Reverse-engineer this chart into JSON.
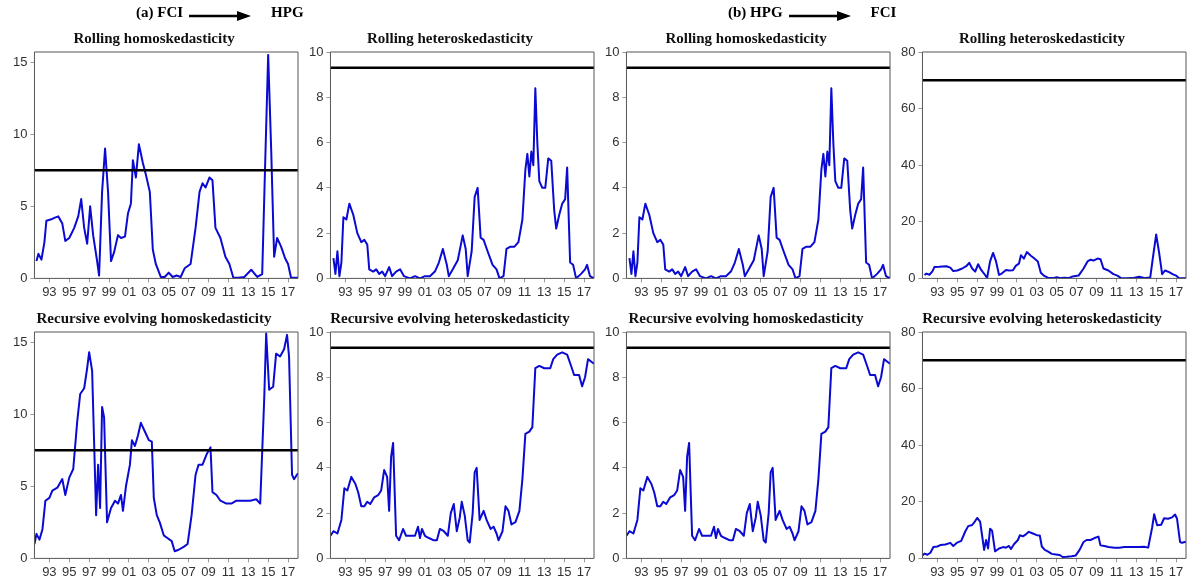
{
  "chart_data": [
    {
      "type": "line",
      "title": "Rolling homoskedasticity",
      "annotations": [
        "(a) FCI",
        "HPG"
      ],
      "xlim": [
        1991.5,
        2018
      ],
      "xticks": [
        {
          "value": 1993,
          "label": "93"
        },
        {
          "value": 1995,
          "label": "95"
        },
        {
          "value": 1997,
          "label": "97"
        },
        {
          "value": 1999,
          "label": "99"
        },
        {
          "value": 2001,
          "label": "01"
        },
        {
          "value": 2003,
          "label": "03"
        },
        {
          "value": 2005,
          "label": "05"
        },
        {
          "value": 2007,
          "label": "07"
        },
        {
          "value": 2009,
          "label": "09"
        },
        {
          "value": 2011,
          "label": "11"
        },
        {
          "value": 2013,
          "label": "13"
        },
        {
          "value": 2015,
          "label": "15"
        },
        {
          "value": 2017,
          "label": "17"
        }
      ],
      "ylim": [
        0,
        15.7
      ],
      "yticks": [
        0,
        5,
        10,
        15
      ],
      "ref_lines": [
        {
          "axis": "y",
          "value": 7.5,
          "color": "#000000"
        }
      ],
      "x": [
        1991.7,
        1991.9,
        1992.2,
        1992.5,
        1992.7,
        1993.2,
        1993.5,
        1993.9,
        1994.3,
        1994.6,
        1995.0,
        1995.5,
        1995.9,
        1996.2,
        1996.5,
        1996.8,
        1997.1,
        1997.4,
        1997.8,
        1998.0,
        1998.3,
        1998.6,
        1998.9,
        1999.2,
        1999.5,
        1999.9,
        2000.2,
        2000.6,
        2000.9,
        2001.2,
        2001.4,
        2001.7,
        2002.0,
        2002.4,
        2002.7,
        2003.1,
        2003.4,
        2003.7,
        2004.2,
        2004.6,
        2005.0,
        2005.4,
        2005.8,
        2006.2,
        2006.6,
        2007.2,
        2007.7,
        2008.1,
        2008.4,
        2008.7,
        2009.1,
        2009.4,
        2009.7,
        2010.2,
        2010.7,
        2011.1,
        2011.5,
        2012.0,
        2012.6,
        2013.3,
        2013.9,
        2014.4,
        2014.7,
        2015.0,
        2015.3,
        2015.6,
        2015.9,
        2016.3,
        2016.7,
        2017.0,
        2017.3,
        2018.0
      ],
      "series": [
        {
          "color": "#0a0ad2",
          "values": [
            1.2,
            1.7,
            1.3,
            2.5,
            4.0,
            4.1,
            4.2,
            4.3,
            3.8,
            2.6,
            2.8,
            3.5,
            4.3,
            5.5,
            3.5,
            2.4,
            5.0,
            3.0,
            1.2,
            0.2,
            6.0,
            9.0,
            6.0,
            1.2,
            1.8,
            3.0,
            2.8,
            2.9,
            4.5,
            5.2,
            8.2,
            7.0,
            9.3,
            8.0,
            7.2,
            6.0,
            2.0,
            1.0,
            0.1,
            0.1,
            0.4,
            0.1,
            0.2,
            0.1,
            0.7,
            1.0,
            3.5,
            6.0,
            6.6,
            6.3,
            7.0,
            6.8,
            3.5,
            2.8,
            1.5,
            1.0,
            0.05,
            0.05,
            0.1,
            0.6,
            0.1,
            0.3,
            8.0,
            15.5,
            9.0,
            1.5,
            2.8,
            2.2,
            1.4,
            1.0,
            0.05,
            0.05
          ]
        }
      ]
    },
    {
      "type": "line",
      "title": "Rolling heteroskedasticity",
      "xlim": [
        1991.5,
        2018
      ],
      "xticks": [
        {
          "value": 1993,
          "label": "93"
        },
        {
          "value": 1995,
          "label": "95"
        },
        {
          "value": 1997,
          "label": "97"
        },
        {
          "value": 1999,
          "label": "99"
        },
        {
          "value": 2001,
          "label": "01"
        },
        {
          "value": 2003,
          "label": "03"
        },
        {
          "value": 2005,
          "label": "05"
        },
        {
          "value": 2007,
          "label": "07"
        },
        {
          "value": 2009,
          "label": "09"
        },
        {
          "value": 2011,
          "label": "11"
        },
        {
          "value": 2013,
          "label": "13"
        },
        {
          "value": 2015,
          "label": "15"
        },
        {
          "value": 2017,
          "label": "17"
        }
      ],
      "ylim": [
        0,
        10
      ],
      "yticks": [
        0,
        2,
        4,
        6,
        8,
        10
      ],
      "ref_lines": [
        {
          "axis": "y",
          "value": 9.3,
          "color": "#000000"
        }
      ],
      "x": [
        1991.8,
        1992.0,
        1992.2,
        1992.4,
        1992.6,
        1992.8,
        1993.1,
        1993.4,
        1993.8,
        1994.2,
        1994.6,
        1994.9,
        1995.2,
        1995.4,
        1995.8,
        1996.1,
        1996.4,
        1996.7,
        1997.0,
        1997.4,
        1997.7,
        1998.1,
        1998.5,
        1998.9,
        1999.5,
        2000.0,
        2000.5,
        2001.0,
        2001.5,
        2002.0,
        2002.4,
        2002.8,
        2003.2,
        2003.4,
        2003.8,
        2004.3,
        2004.8,
        2005.1,
        2005.3,
        2005.7,
        2006.0,
        2006.3,
        2006.6,
        2006.9,
        2007.3,
        2007.8,
        2008.2,
        2008.5,
        2008.9,
        2009.2,
        2009.6,
        2010.0,
        2010.4,
        2010.8,
        2011.1,
        2011.3,
        2011.5,
        2011.7,
        2011.9,
        2012.1,
        2012.3,
        2012.5,
        2012.8,
        2013.1,
        2013.4,
        2013.7,
        2014.0,
        2014.2,
        2014.5,
        2014.8,
        2015.1,
        2015.3,
        2015.6,
        2015.9,
        2016.2,
        2016.7,
        2017.1,
        2017.3,
        2017.6,
        2018.0
      ],
      "series": [
        {
          "color": "#0a0ad2",
          "values": [
            0.9,
            0.2,
            1.2,
            0.1,
            0.7,
            2.7,
            2.6,
            3.3,
            2.8,
            2.0,
            1.6,
            1.7,
            1.5,
            0.4,
            0.3,
            0.4,
            0.2,
            0.3,
            0.1,
            0.5,
            0.1,
            0.3,
            0.4,
            0.1,
            0.0,
            0.1,
            0.0,
            0.1,
            0.1,
            0.3,
            0.7,
            1.3,
            0.6,
            0.1,
            0.4,
            0.8,
            1.9,
            1.3,
            0.1,
            1.2,
            3.6,
            4.0,
            1.8,
            1.7,
            1.2,
            0.6,
            0.4,
            0.0,
            0.1,
            1.3,
            1.4,
            1.4,
            1.6,
            2.6,
            4.8,
            5.5,
            4.5,
            5.6,
            5.0,
            8.4,
            6.0,
            4.3,
            4.0,
            4.0,
            5.3,
            5.2,
            3.0,
            2.2,
            2.8,
            3.3,
            3.5,
            4.9,
            0.7,
            0.6,
            0.0,
            0.2,
            0.4,
            0.6,
            0.1,
            0.0
          ]
        }
      ]
    },
    {
      "type": "line",
      "title": "Rolling homoskedasticity",
      "annotations": [
        "(b) HPG",
        "FCI"
      ],
      "xlim": [
        1991.5,
        2018
      ],
      "xticks": [
        {
          "value": 1993,
          "label": "93"
        },
        {
          "value": 1995,
          "label": "95"
        },
        {
          "value": 1997,
          "label": "97"
        },
        {
          "value": 1999,
          "label": "99"
        },
        {
          "value": 2001,
          "label": "01"
        },
        {
          "value": 2003,
          "label": "03"
        },
        {
          "value": 2005,
          "label": "05"
        },
        {
          "value": 2007,
          "label": "07"
        },
        {
          "value": 2009,
          "label": "09"
        },
        {
          "value": 2011,
          "label": "11"
        },
        {
          "value": 2013,
          "label": "13"
        },
        {
          "value": 2015,
          "label": "15"
        },
        {
          "value": 2017,
          "label": "17"
        }
      ],
      "ylim": [
        0,
        10
      ],
      "yticks": [
        0,
        2,
        4,
        6,
        8,
        10
      ],
      "ref_lines": [
        {
          "axis": "y",
          "value": 9.3,
          "color": "#000000"
        }
      ],
      "x": [
        1991.8,
        1992.0,
        1992.2,
        1992.4,
        1992.6,
        1992.8,
        1993.1,
        1993.4,
        1993.8,
        1994.2,
        1994.6,
        1994.9,
        1995.2,
        1995.4,
        1995.8,
        1996.1,
        1996.4,
        1996.7,
        1997.0,
        1997.4,
        1997.7,
        1998.1,
        1998.5,
        1998.9,
        1999.5,
        2000.0,
        2000.5,
        2001.0,
        2001.5,
        2002.0,
        2002.4,
        2002.8,
        2003.2,
        2003.4,
        2003.8,
        2004.3,
        2004.8,
        2005.1,
        2005.3,
        2005.7,
        2006.0,
        2006.3,
        2006.6,
        2006.9,
        2007.3,
        2007.8,
        2008.2,
        2008.5,
        2008.9,
        2009.2,
        2009.6,
        2010.0,
        2010.4,
        2010.8,
        2011.1,
        2011.3,
        2011.5,
        2011.7,
        2011.9,
        2012.1,
        2012.3,
        2012.5,
        2012.8,
        2013.1,
        2013.4,
        2013.7,
        2014.0,
        2014.2,
        2014.5,
        2014.8,
        2015.1,
        2015.3,
        2015.6,
        2015.9,
        2016.2,
        2016.7,
        2017.1,
        2017.3,
        2017.6,
        2018.0
      ],
      "series": [
        {
          "color": "#0a0ad2",
          "values": [
            0.9,
            0.2,
            1.2,
            0.1,
            0.7,
            2.7,
            2.6,
            3.3,
            2.8,
            2.0,
            1.6,
            1.7,
            1.5,
            0.4,
            0.3,
            0.4,
            0.2,
            0.3,
            0.1,
            0.5,
            0.1,
            0.3,
            0.4,
            0.1,
            0.0,
            0.1,
            0.0,
            0.1,
            0.1,
            0.3,
            0.7,
            1.3,
            0.6,
            0.1,
            0.4,
            0.8,
            1.9,
            1.3,
            0.1,
            1.2,
            3.6,
            4.0,
            1.8,
            1.7,
            1.2,
            0.6,
            0.4,
            0.0,
            0.1,
            1.3,
            1.4,
            1.4,
            1.6,
            2.6,
            4.8,
            5.5,
            4.5,
            5.6,
            5.0,
            8.4,
            6.0,
            4.3,
            4.0,
            4.0,
            5.3,
            5.2,
            3.0,
            2.2,
            2.8,
            3.3,
            3.5,
            4.9,
            0.7,
            0.6,
            0.0,
            0.2,
            0.4,
            0.6,
            0.1,
            0.0
          ]
        }
      ]
    },
    {
      "type": "line",
      "title": "Rolling heteroskedasticity",
      "xlim": [
        1991.5,
        2018
      ],
      "xticks": [
        {
          "value": 1993,
          "label": "93"
        },
        {
          "value": 1995,
          "label": "95"
        },
        {
          "value": 1997,
          "label": "97"
        },
        {
          "value": 1999,
          "label": "99"
        },
        {
          "value": 2001,
          "label": "01"
        },
        {
          "value": 2003,
          "label": "03"
        },
        {
          "value": 2005,
          "label": "05"
        },
        {
          "value": 2007,
          "label": "07"
        },
        {
          "value": 2009,
          "label": "09"
        },
        {
          "value": 2011,
          "label": "11"
        },
        {
          "value": 2013,
          "label": "13"
        },
        {
          "value": 2015,
          "label": "15"
        },
        {
          "value": 2017,
          "label": "17"
        }
      ],
      "ylim": [
        0,
        80
      ],
      "yticks": [
        0,
        20,
        40,
        60,
        80
      ],
      "ref_lines": [
        {
          "axis": "y",
          "value": 70,
          "color": "#000000"
        }
      ],
      "x": [
        1991.7,
        1991.9,
        1992.2,
        1992.5,
        1992.7,
        1993.2,
        1993.5,
        1993.9,
        1994.3,
        1994.6,
        1995.0,
        1995.5,
        1995.9,
        1996.2,
        1996.5,
        1996.8,
        1997.1,
        1997.4,
        1997.8,
        1998.0,
        1998.3,
        1998.6,
        1998.9,
        1999.2,
        1999.5,
        1999.9,
        2000.2,
        2000.6,
        2000.9,
        2001.2,
        2001.4,
        2001.7,
        2002.0,
        2002.4,
        2002.7,
        2003.1,
        2003.4,
        2003.7,
        2004.2,
        2004.6,
        2005.0,
        2005.4,
        2005.8,
        2006.2,
        2006.6,
        2007.2,
        2007.7,
        2008.1,
        2008.4,
        2008.7,
        2009.1,
        2009.4,
        2009.7,
        2010.2,
        2010.7,
        2011.1,
        2011.5,
        2012.0,
        2012.6,
        2013.3,
        2013.9,
        2014.4,
        2014.7,
        2015.0,
        2015.3,
        2015.6,
        2015.9,
        2016.3,
        2016.7,
        2017.0,
        2017.3,
        2018.0
      ],
      "series": [
        {
          "color": "#0a0ad2",
          "values": [
            1.2,
            1.7,
            1.3,
            2.5,
            4.0,
            4.1,
            4.2,
            4.3,
            3.8,
            2.6,
            2.8,
            3.5,
            4.3,
            5.5,
            3.5,
            2.4,
            5.0,
            3.0,
            1.2,
            0.2,
            6.0,
            9.0,
            6.0,
            1.2,
            1.8,
            3.0,
            2.8,
            2.9,
            4.5,
            5.2,
            8.2,
            7.0,
            9.3,
            8.0,
            7.2,
            6.0,
            2.0,
            1.0,
            0.1,
            0.1,
            0.4,
            0.1,
            0.2,
            0.1,
            0.7,
            1.0,
            3.5,
            6.0,
            6.6,
            6.3,
            7.0,
            6.8,
            3.5,
            2.8,
            1.5,
            1.0,
            0.05,
            0.05,
            0.1,
            0.6,
            0.1,
            0.3,
            8.0,
            15.5,
            9.0,
            1.5,
            2.8,
            2.2,
            1.4,
            1.0,
            0.05,
            0.05
          ]
        }
      ]
    },
    {
      "type": "line",
      "title": "Recursive evolving homoskedasticity",
      "xlim": [
        1991.5,
        2018
      ],
      "xticks": [
        {
          "value": 1993,
          "label": "93"
        },
        {
          "value": 1995,
          "label": "95"
        },
        {
          "value": 1997,
          "label": "97"
        },
        {
          "value": 1999,
          "label": "99"
        },
        {
          "value": 2001,
          "label": "01"
        },
        {
          "value": 2003,
          "label": "03"
        },
        {
          "value": 2005,
          "label": "05"
        },
        {
          "value": 2007,
          "label": "07"
        },
        {
          "value": 2009,
          "label": "09"
        },
        {
          "value": 2011,
          "label": "11"
        },
        {
          "value": 2013,
          "label": "13"
        },
        {
          "value": 2015,
          "label": "15"
        },
        {
          "value": 2017,
          "label": "17"
        }
      ],
      "ylim": [
        0,
        15.7
      ],
      "yticks": [
        0,
        5,
        10,
        15
      ],
      "ref_lines": [
        {
          "axis": "y",
          "value": 7.5,
          "color": "#000000"
        }
      ],
      "x": [
        1991.5,
        1991.7,
        1992.0,
        1992.3,
        1992.6,
        1993.0,
        1993.3,
        1993.8,
        1994.3,
        1994.6,
        1995.0,
        1995.4,
        1995.8,
        1996.1,
        1996.5,
        1996.8,
        1997.0,
        1997.3,
        1997.5,
        1997.7,
        1997.9,
        1998.1,
        1998.3,
        1998.5,
        1998.8,
        1999.2,
        1999.6,
        1999.9,
        2000.2,
        2000.4,
        2000.7,
        2001.1,
        2001.3,
        2001.6,
        2001.9,
        2002.2,
        2002.6,
        2003.0,
        2003.3,
        2003.5,
        2003.8,
        2004.1,
        2004.5,
        2004.9,
        2005.3,
        2005.6,
        2006.0,
        2006.5,
        2006.9,
        2007.3,
        2007.7,
        2008.0,
        2008.4,
        2008.8,
        2009.2,
        2009.4,
        2009.8,
        2010.2,
        2010.8,
        2011.3,
        2011.8,
        2012.5,
        2013.2,
        2013.8,
        2014.2,
        2014.6,
        2014.8,
        2015.1,
        2015.5,
        2015.8,
        2016.2,
        2016.6,
        2016.9,
        2017.1,
        2017.4,
        2017.6,
        2018.0
      ],
      "series": [
        {
          "color": "#0a0ad2",
          "values": [
            1.0,
            1.7,
            1.3,
            2.0,
            4.0,
            4.2,
            4.7,
            4.9,
            5.5,
            4.4,
            5.6,
            6.2,
            9.5,
            11.4,
            11.8,
            13.2,
            14.3,
            13.0,
            8.0,
            3.0,
            6.5,
            3.5,
            10.5,
            9.8,
            2.5,
            3.5,
            4.0,
            3.8,
            4.4,
            3.3,
            5.0,
            6.5,
            8.2,
            7.8,
            8.5,
            9.4,
            8.8,
            8.2,
            8.1,
            4.2,
            3.0,
            2.5,
            1.6,
            1.4,
            1.2,
            0.5,
            0.6,
            0.8,
            1.0,
            3.0,
            5.8,
            6.5,
            6.5,
            7.2,
            7.7,
            4.6,
            4.4,
            4.0,
            3.8,
            3.8,
            4.0,
            4.0,
            4.0,
            4.1,
            3.8,
            11.0,
            15.6,
            11.7,
            11.9,
            14.2,
            14.0,
            14.5,
            15.5,
            14.0,
            5.8,
            5.5,
            5.9
          ]
        }
      ]
    },
    {
      "type": "line",
      "title": "Recursive evolving heteroskedasticity",
      "xlim": [
        1991.5,
        2018
      ],
      "xticks": [
        {
          "value": 1993,
          "label": "93"
        },
        {
          "value": 1995,
          "label": "95"
        },
        {
          "value": 1997,
          "label": "97"
        },
        {
          "value": 1999,
          "label": "99"
        },
        {
          "value": 2001,
          "label": "01"
        },
        {
          "value": 2003,
          "label": "03"
        },
        {
          "value": 2005,
          "label": "05"
        },
        {
          "value": 2007,
          "label": "07"
        },
        {
          "value": 2009,
          "label": "09"
        },
        {
          "value": 2011,
          "label": "11"
        },
        {
          "value": 2013,
          "label": "13"
        },
        {
          "value": 2015,
          "label": "15"
        },
        {
          "value": 2017,
          "label": "17"
        }
      ],
      "ylim": [
        0,
        10
      ],
      "yticks": [
        0,
        2,
        4,
        6,
        8,
        10
      ],
      "ref_lines": [
        {
          "axis": "y",
          "value": 9.3,
          "color": "#000000"
        }
      ],
      "x": [
        1991.5,
        1991.8,
        1992.2,
        1992.6,
        1992.9,
        1993.2,
        1993.6,
        1994.0,
        1994.3,
        1994.6,
        1994.9,
        1995.2,
        1995.5,
        1995.9,
        1996.3,
        1996.6,
        1996.9,
        1997.2,
        1997.4,
        1997.6,
        1997.8,
        1998.1,
        1998.4,
        1998.8,
        1999.1,
        1999.7,
        2000.0,
        2000.3,
        2000.5,
        2000.7,
        2001.0,
        2001.4,
        2001.9,
        2002.2,
        2002.5,
        2002.9,
        2003.3,
        2003.6,
        2003.9,
        2004.2,
        2004.5,
        2004.7,
        2005.0,
        2005.3,
        2005.5,
        2005.8,
        2006.0,
        2006.2,
        2006.5,
        2006.9,
        2007.2,
        2007.6,
        2007.9,
        2008.2,
        2008.4,
        2008.8,
        2009.1,
        2009.4,
        2009.7,
        2010.1,
        2010.5,
        2010.8,
        2011.1,
        2011.5,
        2011.8,
        2012.1,
        2012.5,
        2013.0,
        2013.6,
        2013.9,
        2014.3,
        2014.8,
        2015.3,
        2015.7,
        2016.0,
        2016.5,
        2016.8,
        2017.1,
        2017.4,
        2017.7,
        2018.0
      ],
      "series": [
        {
          "color": "#0a0ad2",
          "values": [
            1.0,
            1.2,
            1.1,
            1.7,
            3.1,
            3.0,
            3.6,
            3.3,
            2.9,
            2.3,
            2.3,
            2.5,
            2.4,
            2.7,
            2.8,
            3.0,
            3.9,
            3.6,
            2.1,
            4.5,
            5.1,
            1.0,
            0.8,
            1.3,
            1.0,
            1.0,
            1.0,
            1.4,
            0.9,
            1.3,
            1.0,
            0.9,
            0.8,
            0.8,
            1.3,
            1.2,
            1.0,
            2.0,
            2.4,
            1.2,
            1.8,
            2.5,
            1.9,
            0.8,
            0.7,
            2.0,
            3.8,
            4.0,
            1.7,
            2.1,
            1.7,
            1.3,
            1.4,
            1.1,
            0.8,
            1.2,
            2.3,
            2.1,
            1.5,
            1.6,
            2.1,
            3.5,
            5.5,
            5.6,
            5.8,
            8.4,
            8.5,
            8.4,
            8.4,
            8.8,
            9.0,
            9.1,
            9.0,
            8.5,
            8.1,
            8.1,
            7.6,
            8.0,
            8.8,
            8.7,
            8.6
          ]
        }
      ]
    },
    {
      "type": "line",
      "title": "Recursive evolving homoskedasticity",
      "xlim": [
        1991.5,
        2018
      ],
      "xticks": [
        {
          "value": 1993,
          "label": "93"
        },
        {
          "value": 1995,
          "label": "95"
        },
        {
          "value": 1997,
          "label": "97"
        },
        {
          "value": 1999,
          "label": "99"
        },
        {
          "value": 2001,
          "label": "01"
        },
        {
          "value": 2003,
          "label": "03"
        },
        {
          "value": 2005,
          "label": "05"
        },
        {
          "value": 2007,
          "label": "07"
        },
        {
          "value": 2009,
          "label": "09"
        },
        {
          "value": 2011,
          "label": "11"
        },
        {
          "value": 2013,
          "label": "13"
        },
        {
          "value": 2015,
          "label": "15"
        },
        {
          "value": 2017,
          "label": "17"
        }
      ],
      "ylim": [
        0,
        10
      ],
      "yticks": [
        0,
        2,
        4,
        6,
        8,
        10
      ],
      "ref_lines": [
        {
          "axis": "y",
          "value": 9.3,
          "color": "#000000"
        }
      ],
      "x": [
        1991.5,
        1991.8,
        1992.2,
        1992.6,
        1992.9,
        1993.2,
        1993.6,
        1994.0,
        1994.3,
        1994.6,
        1994.9,
        1995.2,
        1995.5,
        1995.9,
        1996.3,
        1996.6,
        1996.9,
        1997.2,
        1997.4,
        1997.6,
        1997.8,
        1998.1,
        1998.4,
        1998.8,
        1999.1,
        1999.7,
        2000.0,
        2000.3,
        2000.5,
        2000.7,
        2001.0,
        2001.4,
        2001.9,
        2002.2,
        2002.5,
        2002.9,
        2003.3,
        2003.6,
        2003.9,
        2004.2,
        2004.5,
        2004.7,
        2005.0,
        2005.3,
        2005.5,
        2005.8,
        2006.0,
        2006.2,
        2006.5,
        2006.9,
        2007.2,
        2007.6,
        2007.9,
        2008.2,
        2008.4,
        2008.8,
        2009.1,
        2009.4,
        2009.7,
        2010.1,
        2010.5,
        2010.8,
        2011.1,
        2011.5,
        2011.8,
        2012.1,
        2012.5,
        2013.0,
        2013.6,
        2013.9,
        2014.3,
        2014.8,
        2015.3,
        2015.7,
        2016.0,
        2016.5,
        2016.8,
        2017.1,
        2017.4,
        2017.7,
        2018.0
      ],
      "series": [
        {
          "color": "#0a0ad2",
          "values": [
            1.0,
            1.2,
            1.1,
            1.7,
            3.1,
            3.0,
            3.6,
            3.3,
            2.9,
            2.3,
            2.3,
            2.5,
            2.4,
            2.7,
            2.8,
            3.0,
            3.9,
            3.6,
            2.1,
            4.5,
            5.1,
            1.0,
            0.8,
            1.3,
            1.0,
            1.0,
            1.0,
            1.4,
            0.9,
            1.3,
            1.0,
            0.9,
            0.8,
            0.8,
            1.3,
            1.2,
            1.0,
            2.0,
            2.4,
            1.2,
            1.8,
            2.5,
            1.9,
            0.8,
            0.7,
            2.0,
            3.8,
            4.0,
            1.7,
            2.1,
            1.7,
            1.3,
            1.4,
            1.1,
            0.8,
            1.2,
            2.3,
            2.1,
            1.5,
            1.6,
            2.1,
            3.5,
            5.5,
            5.6,
            5.8,
            8.4,
            8.5,
            8.4,
            8.4,
            8.8,
            9.0,
            9.1,
            9.0,
            8.5,
            8.1,
            8.1,
            7.6,
            8.0,
            8.8,
            8.7,
            8.6
          ]
        }
      ]
    },
    {
      "type": "line",
      "title": "Recursive evolving heteroskedasticity",
      "xlim": [
        1991.5,
        2018
      ],
      "xticks": [
        {
          "value": 1993,
          "label": "93"
        },
        {
          "value": 1995,
          "label": "95"
        },
        {
          "value": 1997,
          "label": "97"
        },
        {
          "value": 1999,
          "label": "99"
        },
        {
          "value": 2001,
          "label": "01"
        },
        {
          "value": 2003,
          "label": "03"
        },
        {
          "value": 2005,
          "label": "05"
        },
        {
          "value": 2007,
          "label": "07"
        },
        {
          "value": 2009,
          "label": "09"
        },
        {
          "value": 2011,
          "label": "11"
        },
        {
          "value": 2013,
          "label": "13"
        },
        {
          "value": 2015,
          "label": "15"
        },
        {
          "value": 2017,
          "label": "17"
        }
      ],
      "ylim": [
        0,
        80
      ],
      "yticks": [
        0,
        20,
        40,
        60,
        80
      ],
      "ref_lines": [
        {
          "axis": "y",
          "value": 70,
          "color": "#000000"
        }
      ],
      "x": [
        1991.5,
        1991.7,
        1992.0,
        1992.3,
        1992.6,
        1993.0,
        1993.3,
        1993.8,
        1994.3,
        1994.6,
        1995.0,
        1995.4,
        1995.8,
        1996.1,
        1996.5,
        1996.8,
        1997.0,
        1997.3,
        1997.5,
        1997.7,
        1997.9,
        1998.1,
        1998.3,
        1998.5,
        1998.8,
        1999.2,
        1999.6,
        1999.9,
        2000.2,
        2000.4,
        2000.7,
        2001.1,
        2001.3,
        2001.6,
        2001.9,
        2002.2,
        2002.6,
        2003.0,
        2003.3,
        2003.5,
        2003.8,
        2004.1,
        2004.5,
        2004.9,
        2005.3,
        2005.6,
        2006.0,
        2006.5,
        2006.9,
        2007.3,
        2007.7,
        2008.0,
        2008.4,
        2008.8,
        2009.2,
        2009.4,
        2009.8,
        2010.2,
        2010.8,
        2011.3,
        2011.8,
        2012.5,
        2013.2,
        2013.8,
        2014.2,
        2014.6,
        2014.8,
        2015.1,
        2015.5,
        2015.8,
        2016.2,
        2016.6,
        2016.9,
        2017.1,
        2017.4,
        2017.6,
        2018.0
      ],
      "series": [
        {
          "color": "#0a0ad2",
          "values": [
            1.0,
            1.7,
            1.3,
            2.0,
            4.0,
            4.2,
            4.7,
            4.9,
            5.5,
            4.4,
            5.6,
            6.2,
            9.5,
            11.4,
            11.8,
            13.2,
            14.3,
            13.0,
            8.0,
            3.0,
            6.5,
            3.5,
            10.5,
            9.8,
            2.5,
            3.5,
            4.0,
            3.8,
            4.4,
            3.3,
            5.0,
            6.5,
            8.2,
            7.8,
            8.5,
            9.4,
            8.8,
            8.2,
            8.1,
            4.2,
            3.0,
            2.5,
            1.6,
            1.4,
            1.2,
            0.5,
            0.6,
            0.8,
            1.0,
            3.0,
            5.8,
            6.5,
            6.5,
            7.2,
            7.7,
            4.6,
            4.4,
            4.0,
            3.8,
            3.8,
            4.0,
            4.0,
            4.0,
            4.1,
            3.8,
            11.0,
            15.6,
            11.7,
            11.9,
            14.2,
            14.0,
            14.5,
            15.5,
            14.0,
            5.8,
            5.5,
            5.9
          ]
        }
      ]
    }
  ]
}
